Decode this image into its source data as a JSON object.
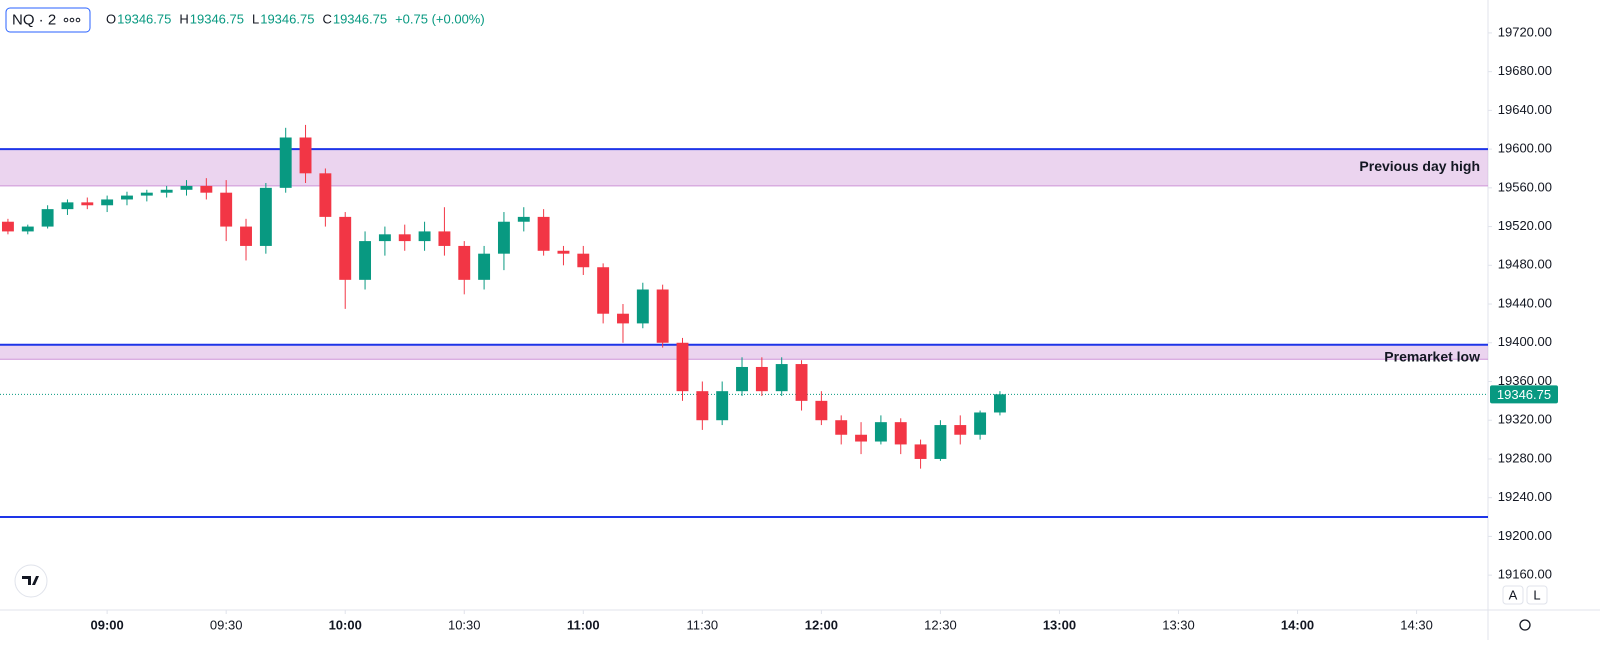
{
  "chart_data": {
    "type": "candlestick",
    "symbol": "NQ · 2",
    "ohlc_header": {
      "o_label": "O",
      "o": "19346.75",
      "h_label": "H",
      "h": "19346.75",
      "l_label": "L",
      "l": "19346.75",
      "c_label": "C",
      "c": "19346.75",
      "change": "+0.75 (+0.00%)"
    },
    "up_color": "#089981",
    "down_color": "#f23645",
    "x": [
      "08:35",
      "08:40",
      "08:45",
      "08:50",
      "08:55",
      "09:00",
      "09:05",
      "09:10",
      "09:15",
      "09:20",
      "09:25",
      "09:30",
      "09:35",
      "09:40",
      "09:45",
      "09:50",
      "09:55",
      "10:00",
      "10:05",
      "10:10",
      "10:15",
      "10:20",
      "10:25",
      "10:30",
      "10:35",
      "10:40",
      "10:45",
      "10:50",
      "10:55",
      "11:00",
      "11:05",
      "11:10",
      "11:15",
      "11:20",
      "11:25",
      "11:30",
      "11:35",
      "11:40",
      "11:45",
      "11:50",
      "11:55",
      "12:00",
      "12:05",
      "12:10",
      "12:15",
      "12:20",
      "12:25",
      "12:30",
      "12:35",
      "12:40",
      "12:45"
    ],
    "open": [
      19525,
      19515,
      19520,
      19538,
      19545,
      19542,
      19548,
      19552,
      19555,
      19558,
      19562,
      19555,
      19520,
      19500,
      19560,
      19612,
      19575,
      19530,
      19465,
      19505,
      19512,
      19505,
      19515,
      19500,
      19465,
      19492,
      19525,
      19530,
      19495,
      19492,
      19478,
      19430,
      19420,
      19455,
      19400,
      19350,
      19320,
      19350,
      19375,
      19350,
      19378,
      19340,
      19320,
      19305,
      19298,
      19318,
      19295,
      19280,
      19315,
      19305,
      19328
    ],
    "high": [
      19528,
      19522,
      19542,
      19548,
      19550,
      19552,
      19556,
      19558,
      19562,
      19568,
      19570,
      19568,
      19528,
      19565,
      19622,
      19625,
      19580,
      19535,
      19515,
      19520,
      19522,
      19525,
      19540,
      19505,
      19500,
      19535,
      19540,
      19538,
      19500,
      19500,
      19482,
      19440,
      19462,
      19460,
      19405,
      19360,
      19360,
      19385,
      19385,
      19385,
      19382,
      19350,
      19325,
      19318,
      19325,
      19322,
      19300,
      19320,
      19325,
      19330,
      19350
    ],
    "low": [
      19512,
      19512,
      19518,
      19532,
      19538,
      19535,
      19542,
      19546,
      19550,
      19552,
      19548,
      19505,
      19485,
      19492,
      19555,
      19565,
      19520,
      19435,
      19455,
      19490,
      19495,
      19495,
      19490,
      19450,
      19455,
      19475,
      19515,
      19490,
      19480,
      19470,
      19420,
      19400,
      19415,
      19395,
      19340,
      19310,
      19315,
      19345,
      19345,
      19345,
      19330,
      19315,
      19295,
      19285,
      19295,
      19285,
      19270,
      19278,
      19295,
      19300,
      19325
    ],
    "close": [
      19515,
      19520,
      19538,
      19545,
      19542,
      19548,
      19552,
      19555,
      19558,
      19562,
      19555,
      19520,
      19500,
      19560,
      19612,
      19575,
      19530,
      19465,
      19505,
      19512,
      19505,
      19515,
      19500,
      19465,
      19492,
      19525,
      19530,
      19495,
      19492,
      19478,
      19430,
      19420,
      19455,
      19400,
      19350,
      19320,
      19350,
      19375,
      19350,
      19378,
      19340,
      19320,
      19305,
      19298,
      19318,
      19295,
      19280,
      19315,
      19305,
      19328,
      19346.75
    ],
    "last_price": 19346.75,
    "last_price_label": "19346.75",
    "zones": [
      {
        "label": "Previous day high",
        "top": 19600,
        "bottom": 19562
      },
      {
        "label": "Premarket low",
        "top": 19398,
        "bottom": 19383
      }
    ],
    "hline": 19220,
    "xlim": [
      "08:33",
      "14:48"
    ],
    "xticks": [
      "09:00",
      "09:30",
      "10:00",
      "10:30",
      "11:00",
      "11:30",
      "12:00",
      "12:30",
      "13:00",
      "13:30",
      "14:00",
      "14:30"
    ],
    "ylim": [
      19124,
      19754
    ],
    "yticks": [
      {
        "value": 19160,
        "label": "19160.00"
      },
      {
        "value": 19200,
        "label": "19200.00"
      },
      {
        "value": 19240,
        "label": "19240.00"
      },
      {
        "value": 19280,
        "label": "19280.00"
      },
      {
        "value": 19320,
        "label": "19320.00"
      },
      {
        "value": 19360,
        "label": "19360.00"
      },
      {
        "value": 19400,
        "label": "19400.00"
      },
      {
        "value": 19440,
        "label": "19440.00"
      },
      {
        "value": 19480,
        "label": "19480.00"
      },
      {
        "value": 19520,
        "label": "19520.00"
      },
      {
        "value": 19560,
        "label": "19560.00"
      },
      {
        "value": 19600,
        "label": "19600.00"
      },
      {
        "value": 19640,
        "label": "19640.00"
      },
      {
        "value": 19680,
        "label": "19680.00"
      },
      {
        "value": 19720,
        "label": "19720.00"
      }
    ],
    "scale_buttons": [
      "A",
      "L"
    ]
  }
}
